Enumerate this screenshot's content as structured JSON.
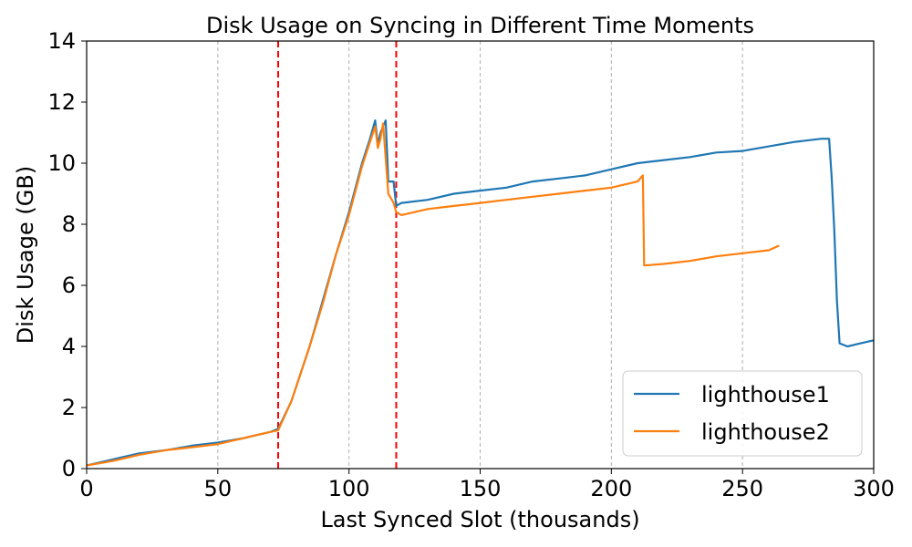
{
  "chart_data": {
    "type": "line",
    "title": "Disk Usage on Syncing in Different Time Moments",
    "xlabel": "Last Synced Slot (thousands)",
    "ylabel": "Disk Usage (GB)",
    "xlim": [
      0,
      300
    ],
    "ylim": [
      0,
      14
    ],
    "xticks": [
      0,
      50,
      100,
      150,
      200,
      250,
      300
    ],
    "yticks": [
      0,
      2,
      4,
      6,
      8,
      10,
      12,
      14
    ],
    "xtick_labels": [
      "0",
      "50",
      "100",
      "150",
      "200",
      "250",
      "300"
    ],
    "ytick_labels": [
      "0",
      "2",
      "4",
      "6",
      "8",
      "10",
      "12",
      "14"
    ],
    "grid": "vertical dashed gray at x ticks",
    "vertical_markers": [
      73,
      118
    ],
    "vertical_marker_color": "#ff0000",
    "legend_position": "lower-right",
    "series": [
      {
        "name": "lighthouse1",
        "color": "#1f77b4",
        "x": [
          0,
          10,
          20,
          30,
          40,
          50,
          60,
          65,
          70,
          73,
          78,
          85,
          90,
          95,
          100,
          105,
          108,
          110,
          111,
          112,
          114,
          115,
          117,
          118,
          120,
          130,
          140,
          150,
          160,
          170,
          180,
          190,
          200,
          210,
          220,
          230,
          240,
          250,
          260,
          270,
          280,
          283,
          284,
          285,
          286,
          287,
          290,
          295,
          300
        ],
        "y": [
          0.1,
          0.3,
          0.5,
          0.6,
          0.75,
          0.85,
          1.0,
          1.1,
          1.2,
          1.3,
          2.2,
          4.0,
          5.5,
          7.0,
          8.4,
          10.0,
          10.8,
          11.4,
          10.6,
          11.0,
          11.4,
          9.4,
          9.4,
          8.6,
          8.7,
          8.8,
          9.0,
          9.1,
          9.2,
          9.4,
          9.5,
          9.6,
          9.8,
          10.0,
          10.1,
          10.2,
          10.35,
          10.4,
          10.55,
          10.7,
          10.8,
          10.8,
          9.5,
          7.8,
          5.5,
          4.1,
          4.0,
          4.1,
          4.2
        ]
      },
      {
        "name": "lighthouse2",
        "color": "#ff7f0e",
        "x": [
          0,
          10,
          20,
          30,
          40,
          50,
          60,
          65,
          70,
          73,
          78,
          85,
          90,
          95,
          100,
          105,
          108,
          110,
          111,
          112,
          113,
          115,
          117,
          118,
          120,
          130,
          140,
          150,
          160,
          170,
          180,
          190,
          200,
          210,
          212,
          212.5,
          220,
          230,
          240,
          250,
          260,
          264
        ],
        "y": [
          0.1,
          0.25,
          0.45,
          0.6,
          0.7,
          0.8,
          1.0,
          1.1,
          1.2,
          1.25,
          2.2,
          4.0,
          5.4,
          7.0,
          8.3,
          9.9,
          10.7,
          11.2,
          10.5,
          10.8,
          11.3,
          9.0,
          8.7,
          8.4,
          8.3,
          8.5,
          8.6,
          8.7,
          8.8,
          8.9,
          9.0,
          9.1,
          9.2,
          9.4,
          9.6,
          6.65,
          6.7,
          6.8,
          6.95,
          7.05,
          7.15,
          7.3
        ]
      }
    ]
  }
}
